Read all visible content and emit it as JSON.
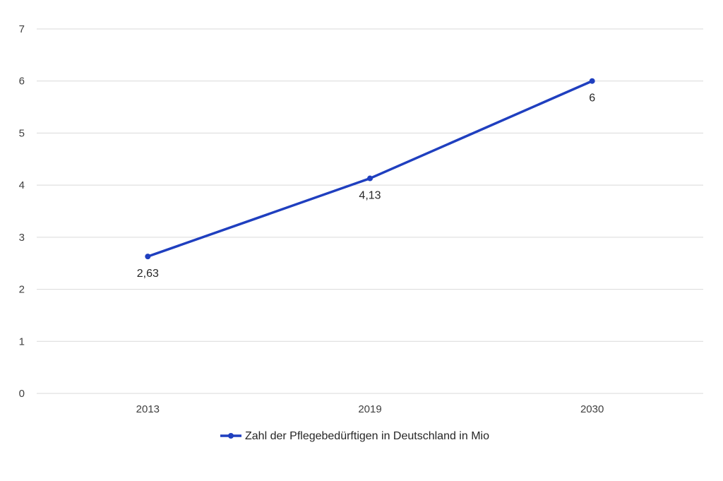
{
  "chart_data": {
    "type": "line",
    "categories": [
      "2013",
      "2019",
      "2030"
    ],
    "series": [
      {
        "name": "Zahl der Pflegebedürftigen in Deutschland in Mio",
        "values": [
          2.63,
          4.13,
          6
        ],
        "value_labels": [
          "2,63",
          "4,13",
          "6"
        ],
        "color": "#1f3fbf"
      }
    ],
    "ylim": [
      0,
      7
    ],
    "yticks": [
      "0",
      "1",
      "2",
      "3",
      "4",
      "5",
      "6",
      "7"
    ],
    "grid": true,
    "legend_position": "bottom",
    "gridline_color": "#d9d9d9"
  }
}
